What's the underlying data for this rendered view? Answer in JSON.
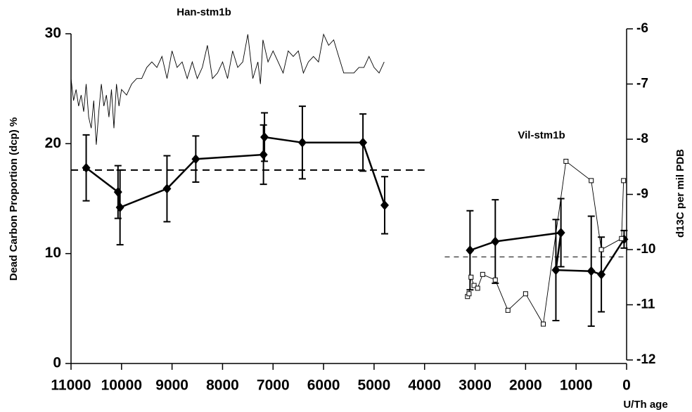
{
  "chart_data": {
    "type": "line",
    "ylabel": "Dead Carbon Proportion (dcp) %",
    "y2label": "d13C per mil PDB",
    "xlabel": "U/Th age",
    "annotations": [
      "Han-stm1b",
      "Vil-stm1b"
    ],
    "xlim": [
      11000,
      0
    ],
    "xticks": [
      11000,
      10000,
      9000,
      8000,
      7000,
      6000,
      5000,
      4000,
      3000,
      2000,
      1000,
      0
    ],
    "ylim": [
      0,
      30
    ],
    "yticks": [
      0,
      10,
      20,
      30
    ],
    "y2lim": [
      -12,
      -6
    ],
    "y2ticks": [
      -12,
      -11,
      -10,
      -9,
      -8,
      -7,
      -6
    ],
    "series": [
      {
        "color": "#000",
        "marker": "diamond",
        "width": 2.5,
        "x": [
          10700,
          10070,
          10030,
          9100,
          8530,
          7190,
          7170,
          6420,
          5220,
          4790
        ],
        "values": [
          17.8,
          15.6,
          14.2,
          15.9,
          18.6,
          19.0,
          20.6,
          20.1,
          20.1,
          14.4
        ],
        "errors": [
          3.0,
          2.4,
          3.4,
          3.0,
          2.1,
          2.7,
          2.2,
          3.3,
          2.6,
          2.6
        ]
      },
      {
        "color": "#000",
        "marker": "diamond",
        "width": 2.5,
        "x": [
          3100,
          2600,
          1300,
          1400,
          700,
          500,
          50
        ],
        "values": [
          10.3,
          11.1,
          11.9,
          8.5,
          8.4,
          8.1,
          11.3
        ],
        "errors": [
          3.6,
          3.8,
          3.1,
          4.6,
          5.0,
          3.4,
          0.8
        ]
      },
      {
        "color": "#000",
        "marker": "none",
        "width": 0.9,
        "axis": "y2",
        "x": [
          11000,
          10950,
          10900,
          10850,
          10800,
          10750,
          10700,
          10650,
          10600,
          10550,
          10500,
          10450,
          10400,
          10350,
          10300,
          10250,
          10200,
          10150,
          10100,
          10050,
          10000,
          9900,
          9800,
          9700,
          9600,
          9500,
          9400,
          9300,
          9200,
          9100,
          9000,
          8900,
          8800,
          8700,
          8600,
          8500,
          8400,
          8300,
          8200,
          8100,
          8000,
          7900,
          7800,
          7700,
          7600,
          7500,
          7400,
          7300,
          7250,
          7200,
          7100,
          7000,
          6900,
          6800,
          6700,
          6600,
          6500,
          6400,
          6300,
          6200,
          6100,
          6000,
          5900,
          5800,
          5700,
          5600,
          5500,
          5400,
          5300,
          5200,
          5100,
          5000,
          4900,
          4800
        ],
        "values": [
          -6.9,
          -7.3,
          -7.1,
          -7.4,
          -7.2,
          -7.5,
          -7.0,
          -7.6,
          -7.8,
          -7.3,
          -8.1,
          -7.5,
          -7.0,
          -7.4,
          -7.2,
          -7.6,
          -7.1,
          -7.8,
          -7.0,
          -7.4,
          -7.1,
          -7.2,
          -7.0,
          -6.9,
          -6.9,
          -6.7,
          -6.6,
          -6.7,
          -6.5,
          -6.9,
          -6.4,
          -6.7,
          -6.6,
          -6.9,
          -6.6,
          -6.9,
          -6.7,
          -6.3,
          -6.9,
          -6.8,
          -6.6,
          -6.9,
          -6.4,
          -6.7,
          -6.6,
          -6.1,
          -6.9,
          -6.6,
          -7.0,
          -6.2,
          -6.6,
          -6.4,
          -6.6,
          -6.8,
          -6.4,
          -6.5,
          -6.4,
          -6.8,
          -6.6,
          -6.5,
          -6.6,
          -6.1,
          -6.3,
          -6.2,
          -6.5,
          -6.8,
          -6.8,
          -6.8,
          -6.7,
          -6.7,
          -6.5,
          -6.7,
          -6.8,
          -6.6
        ]
      },
      {
        "color": "#000",
        "marker": "square",
        "width": 0.9,
        "axis": "y2",
        "x": [
          3150,
          3120,
          3080,
          3020,
          2950,
          2850,
          2600,
          2350,
          2000,
          1650,
          1200,
          700,
          500,
          100,
          60
        ],
        "values": [
          -10.85,
          -10.8,
          -10.5,
          -10.65,
          -10.7,
          -10.45,
          -10.55,
          -11.1,
          -10.8,
          -11.35,
          -8.4,
          -8.75,
          -10.0,
          -9.8,
          -8.75
        ]
      }
    ],
    "reference_lines": [
      {
        "value": 17.6,
        "x": [
          11000,
          4000
        ],
        "width": 2
      },
      {
        "value": 9.7,
        "x": [
          3600,
          0
        ],
        "width": 1
      }
    ]
  }
}
